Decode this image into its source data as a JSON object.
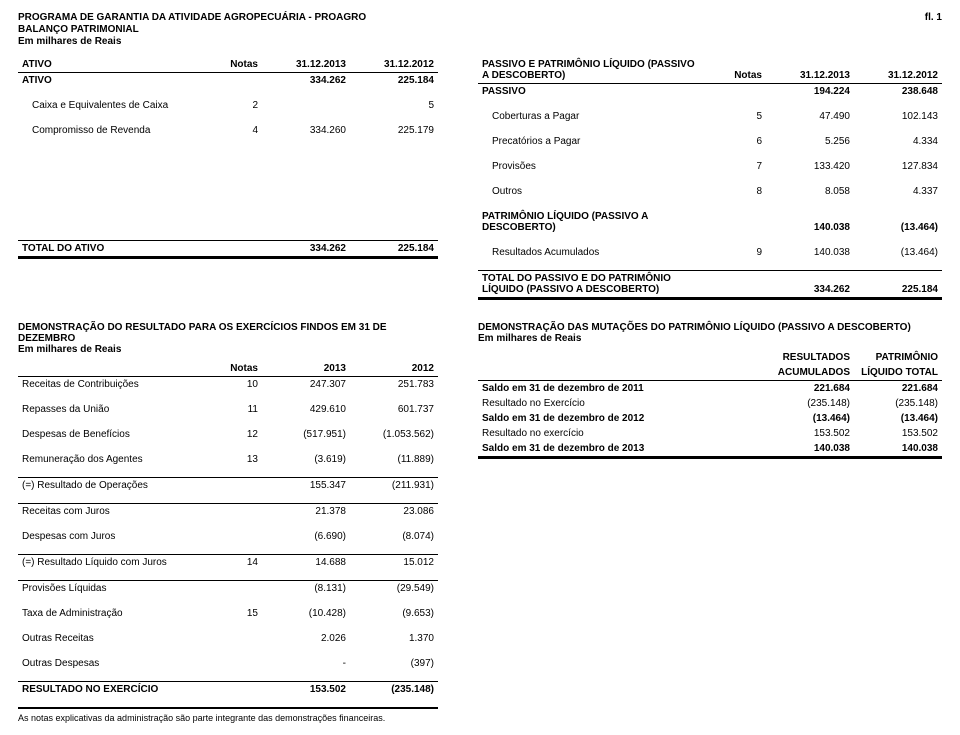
{
  "header": {
    "program": "PROGRAMA DE GARANTIA DA ATIVIDADE AGROPECUÁRIA - PROAGRO",
    "page": "fl. 1",
    "balance": "BALANÇO PATRIMONIAL",
    "unit": "Em milhares de Reais"
  },
  "balance": {
    "left": {
      "col_headers": {
        "item": "ATIVO",
        "notas": "Notas",
        "d1": "31.12.2013",
        "d2": "31.12.2012"
      },
      "rows": [
        {
          "label": "ATIVO",
          "n": "",
          "v1": "334.262",
          "v2": "225.184",
          "bold": true
        },
        {
          "label": "Caixa e Equivalentes de Caixa",
          "n": "2",
          "v1": "",
          "v2": "5"
        },
        {
          "label": "Compromisso de Revenda",
          "n": "4",
          "v1": "334.260",
          "v2": "225.179"
        }
      ],
      "total": {
        "label": "TOTAL DO ATIVO",
        "n": "",
        "v1": "334.262",
        "v2": "225.184"
      }
    },
    "right": {
      "col_headers": {
        "item": "PASSIVO E PATRIMÔNIO LÍQUIDO (PASSIVO A DESCOBERTO)",
        "notas": "Notas",
        "d1": "31.12.2013",
        "d2": "31.12.2012"
      },
      "rows": [
        {
          "label": "PASSIVO",
          "n": "",
          "v1": "194.224",
          "v2": "238.648",
          "bold": true
        },
        {
          "label": "Coberturas a Pagar",
          "n": "5",
          "v1": "47.490",
          "v2": "102.143"
        },
        {
          "label": "Precatórios a Pagar",
          "n": "6",
          "v1": "5.256",
          "v2": "4.334"
        },
        {
          "label": "Provisões",
          "n": "7",
          "v1": "133.420",
          "v2": "127.834"
        },
        {
          "label": "Outros",
          "n": "8",
          "v1": "8.058",
          "v2": "4.337"
        },
        {
          "label": "PATRIMÔNIO LÍQUIDO (PASSIVO A DESCOBERTO)",
          "n": "",
          "v1": "140.038",
          "v2": "(13.464)",
          "bold": true
        },
        {
          "label": "Resultados Acumulados",
          "n": "9",
          "v1": "140.038",
          "v2": "(13.464)"
        }
      ],
      "total": {
        "label": "TOTAL DO PASSIVO E DO PATRIMÔNIO LÍQUIDO (PASSIVO A DESCOBERTO)",
        "n": "",
        "v1": "334.262",
        "v2": "225.184"
      }
    }
  },
  "dre": {
    "title": "DEMONSTRAÇÃO DO RESULTADO PARA OS EXERCÍCIOS FINDOS EM 31 DE DEZEMBRO",
    "unit": "Em milhares de Reais",
    "col_headers": {
      "notas": "Notas",
      "d1": "2013",
      "d2": "2012"
    },
    "rows": [
      {
        "label": "Receitas de Contribuições",
        "n": "10",
        "v1": "247.307",
        "v2": "251.783"
      },
      {
        "label": "Repasses da União",
        "n": "11",
        "v1": "429.610",
        "v2": "601.737"
      },
      {
        "label": "Despesas de Benefícios",
        "n": "12",
        "v1": "(517.951)",
        "v2": "(1.053.562)"
      },
      {
        "label": "Remuneração dos Agentes",
        "n": "13",
        "v1": "(3.619)",
        "v2": "(11.889)"
      },
      {
        "label": "(=) Resultado de Operações",
        "n": "",
        "v1": "155.347",
        "v2": "(211.931)",
        "rule": true
      },
      {
        "label": "Receitas com Juros",
        "n": "",
        "v1": "21.378",
        "v2": "23.086"
      },
      {
        "label": "Despesas com Juros",
        "n": "",
        "v1": "(6.690)",
        "v2": "(8.074)"
      },
      {
        "label": "(=) Resultado Líquido com Juros",
        "n": "14",
        "v1": "14.688",
        "v2": "15.012",
        "rule": true
      },
      {
        "label": "Provisões Líquidas",
        "n": "",
        "v1": "(8.131)",
        "v2": "(29.549)"
      },
      {
        "label": "Taxa de Administração",
        "n": "15",
        "v1": "(10.428)",
        "v2": "(9.653)"
      },
      {
        "label": "Outras Receitas",
        "n": "",
        "v1": "2.026",
        "v2": "1.370"
      },
      {
        "label": "Outras Despesas",
        "n": "",
        "v1": "-",
        "v2": "(397)"
      },
      {
        "label": "RESULTADO NO EXERCÍCIO",
        "n": "",
        "v1": "153.502",
        "v2": "(235.148)",
        "bold": true,
        "rule": true
      }
    ],
    "footnote": "As notas explicativas da administração são parte integrante das demonstrações financeiras."
  },
  "dmpl": {
    "title": "DEMONSTRAÇÃO DAS MUTAÇÕES DO PATRIMÔNIO LÍQUIDO (PASSIVO A DESCOBERTO)",
    "unit": "Em milhares de Reais",
    "col_headers": {
      "c1a": "RESULTADOS",
      "c1b": "ACUMULADOS",
      "c2a": "PATRIMÔNIO",
      "c2b": "LÍQUIDO TOTAL"
    },
    "rows": [
      {
        "label": "Saldo em 31 de dezembro de 2011",
        "v1": "221.684",
        "v2": "221.684",
        "bold": true,
        "rule": true
      },
      {
        "label": "Resultado no Exercício",
        "v1": "(235.148)",
        "v2": "(235.148)"
      },
      {
        "label": "Saldo em 31 de dezembro de 2012",
        "v1": "(13.464)",
        "v2": "(13.464)",
        "bold": true,
        "rule": true
      },
      {
        "label": "Resultado no exercício",
        "v1": "153.502",
        "v2": "153.502"
      },
      {
        "label": "Saldo em 31 de dezembro de 2013",
        "v1": "140.038",
        "v2": "140.038",
        "bold": true,
        "rule": true,
        "dblafter": true
      }
    ]
  }
}
